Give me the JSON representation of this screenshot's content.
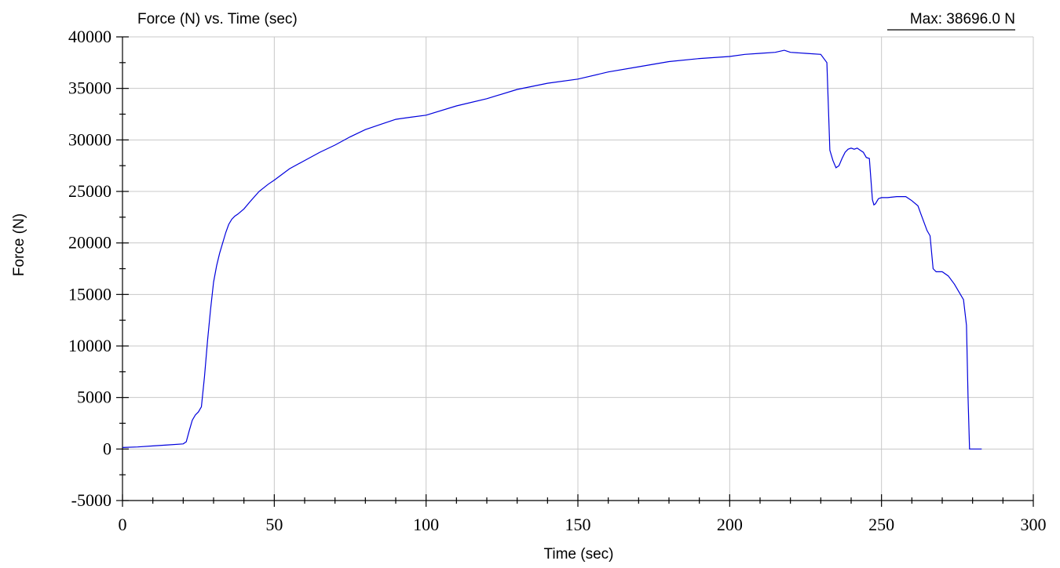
{
  "chart_data": {
    "type": "line",
    "title": "Force (N) vs. Time (sec)",
    "annotation": "Max: 38696.0 N",
    "xlabel": "Time (sec)",
    "ylabel": "Force (N)",
    "xlim": [
      0,
      300
    ],
    "ylim": [
      -5000,
      40000
    ],
    "x_ticks": [
      "0",
      "50",
      "100",
      "150",
      "200",
      "250",
      "300"
    ],
    "y_ticks": [
      "-5000",
      "0",
      "5000",
      "10000",
      "15000",
      "20000",
      "25000",
      "30000",
      "35000",
      "40000"
    ],
    "grid": true,
    "line_color": "#0000dd",
    "series": [
      {
        "x": [
          0,
          5,
          10,
          15,
          20,
          21,
          22,
          23,
          24,
          25,
          26,
          27,
          28,
          29,
          30,
          31,
          32,
          33,
          34,
          35,
          36,
          37,
          38,
          40,
          42,
          45,
          48,
          50,
          55,
          60,
          65,
          70,
          75,
          80,
          85,
          90,
          95,
          100,
          110,
          120,
          130,
          140,
          150,
          160,
          170,
          180,
          190,
          200,
          205,
          210,
          215,
          218,
          220,
          225,
          230,
          232,
          233,
          234,
          235,
          236,
          237,
          238,
          239,
          240,
          241,
          242,
          243,
          244,
          245,
          246,
          247,
          247.5,
          248,
          249,
          250,
          252,
          255,
          258,
          260,
          262,
          263,
          264,
          265,
          266,
          267,
          268,
          270,
          272,
          274,
          276,
          277,
          278,
          278.5,
          279,
          279.5,
          280,
          283
        ],
        "y": [
          150,
          200,
          300,
          400,
          500,
          700,
          1800,
          2800,
          3300,
          3600,
          4100,
          7000,
          10500,
          13500,
          16200,
          17800,
          19000,
          20000,
          21000,
          21800,
          22300,
          22600,
          22800,
          23300,
          24000,
          25000,
          25700,
          26100,
          27200,
          28000,
          28800,
          29500,
          30300,
          31000,
          31500,
          32000,
          32200,
          32400,
          33300,
          34000,
          34900,
          35500,
          35900,
          36600,
          37100,
          37600,
          37900,
          38100,
          38300,
          38400,
          38500,
          38696,
          38500,
          38400,
          38300,
          37500,
          29000,
          28000,
          27300,
          27500,
          28200,
          28800,
          29100,
          29200,
          29100,
          29200,
          29000,
          28800,
          28300,
          28200,
          24200,
          23700,
          23800,
          24300,
          24400,
          24400,
          24500,
          24500,
          24100,
          23600,
          22800,
          22000,
          21200,
          20700,
          17500,
          17200,
          17200,
          16800,
          16000,
          15000,
          14500,
          12000,
          5000,
          0,
          0,
          0,
          0
        ]
      }
    ]
  }
}
